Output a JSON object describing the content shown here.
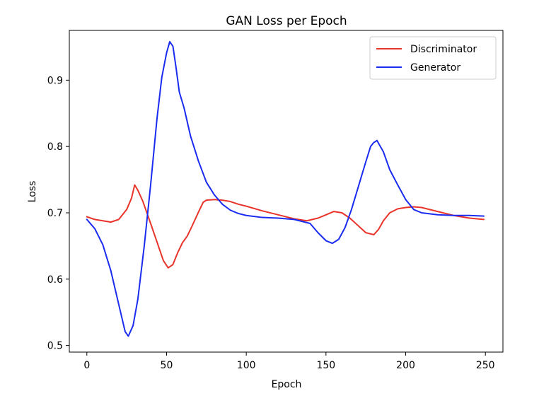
{
  "chart_data": {
    "type": "line",
    "title": "GAN Loss per Epoch",
    "xlabel": "Epoch",
    "ylabel": "Loss",
    "xlim": [
      -11,
      261
    ],
    "ylim": [
      0.49,
      0.975
    ],
    "xticks": [
      0,
      50,
      100,
      150,
      200,
      250
    ],
    "yticks": [
      0.5,
      0.6,
      0.7,
      0.8,
      0.9
    ],
    "xtick_labels": [
      "0",
      "50",
      "100",
      "150",
      "200",
      "250"
    ],
    "ytick_labels": [
      "0.5",
      "0.6",
      "0.7",
      "0.8",
      "0.9"
    ],
    "grid": false,
    "legend_position": "top-right",
    "series": [
      {
        "name": "Discriminator",
        "color": "#e8342a",
        "points": [
          [
            0,
            0.694
          ],
          [
            5,
            0.69
          ],
          [
            10,
            0.688
          ],
          [
            15,
            0.686
          ],
          [
            20,
            0.69
          ],
          [
            25,
            0.705
          ],
          [
            28,
            0.722
          ],
          [
            30,
            0.742
          ],
          [
            32,
            0.734
          ],
          [
            35,
            0.718
          ],
          [
            40,
            0.684
          ],
          [
            44,
            0.656
          ],
          [
            48,
            0.628
          ],
          [
            51,
            0.617
          ],
          [
            54,
            0.622
          ],
          [
            57,
            0.64
          ],
          [
            60,
            0.655
          ],
          [
            63,
            0.665
          ],
          [
            66,
            0.68
          ],
          [
            70,
            0.701
          ],
          [
            73,
            0.716
          ],
          [
            75,
            0.719
          ],
          [
            80,
            0.72
          ],
          [
            85,
            0.719
          ],
          [
            90,
            0.717
          ],
          [
            95,
            0.713
          ],
          [
            100,
            0.71
          ],
          [
            110,
            0.703
          ],
          [
            120,
            0.697
          ],
          [
            130,
            0.691
          ],
          [
            138,
            0.688
          ],
          [
            145,
            0.692
          ],
          [
            150,
            0.697
          ],
          [
            155,
            0.702
          ],
          [
            160,
            0.7
          ],
          [
            165,
            0.692
          ],
          [
            170,
            0.681
          ],
          [
            175,
            0.67
          ],
          [
            180,
            0.667
          ],
          [
            183,
            0.675
          ],
          [
            186,
            0.688
          ],
          [
            190,
            0.7
          ],
          [
            195,
            0.706
          ],
          [
            200,
            0.708
          ],
          [
            205,
            0.709
          ],
          [
            210,
            0.708
          ],
          [
            220,
            0.702
          ],
          [
            230,
            0.696
          ],
          [
            240,
            0.692
          ],
          [
            249,
            0.69
          ]
        ]
      },
      {
        "name": "Generator",
        "color": "#1a2cf0",
        "points": [
          [
            0,
            0.69
          ],
          [
            5,
            0.676
          ],
          [
            10,
            0.652
          ],
          [
            15,
            0.613
          ],
          [
            20,
            0.562
          ],
          [
            24,
            0.521
          ],
          [
            26,
            0.514
          ],
          [
            29,
            0.53
          ],
          [
            32,
            0.57
          ],
          [
            36,
            0.65
          ],
          [
            40,
            0.742
          ],
          [
            44,
            0.842
          ],
          [
            47,
            0.904
          ],
          [
            50,
            0.941
          ],
          [
            52,
            0.958
          ],
          [
            54,
            0.951
          ],
          [
            56,
            0.918
          ],
          [
            58,
            0.882
          ],
          [
            61,
            0.858
          ],
          [
            65,
            0.816
          ],
          [
            70,
            0.778
          ],
          [
            75,
            0.746
          ],
          [
            80,
            0.727
          ],
          [
            85,
            0.713
          ],
          [
            90,
            0.704
          ],
          [
            95,
            0.699
          ],
          [
            100,
            0.696
          ],
          [
            110,
            0.693
          ],
          [
            120,
            0.692
          ],
          [
            130,
            0.69
          ],
          [
            140,
            0.684
          ],
          [
            145,
            0.67
          ],
          [
            150,
            0.658
          ],
          [
            154,
            0.654
          ],
          [
            158,
            0.66
          ],
          [
            162,
            0.678
          ],
          [
            166,
            0.705
          ],
          [
            170,
            0.737
          ],
          [
            175,
            0.777
          ],
          [
            178,
            0.8
          ],
          [
            180,
            0.806
          ],
          [
            182,
            0.809
          ],
          [
            186,
            0.792
          ],
          [
            190,
            0.765
          ],
          [
            195,
            0.742
          ],
          [
            200,
            0.72
          ],
          [
            205,
            0.705
          ],
          [
            210,
            0.7
          ],
          [
            220,
            0.697
          ],
          [
            230,
            0.696
          ],
          [
            240,
            0.696
          ],
          [
            249,
            0.695
          ]
        ]
      }
    ]
  }
}
